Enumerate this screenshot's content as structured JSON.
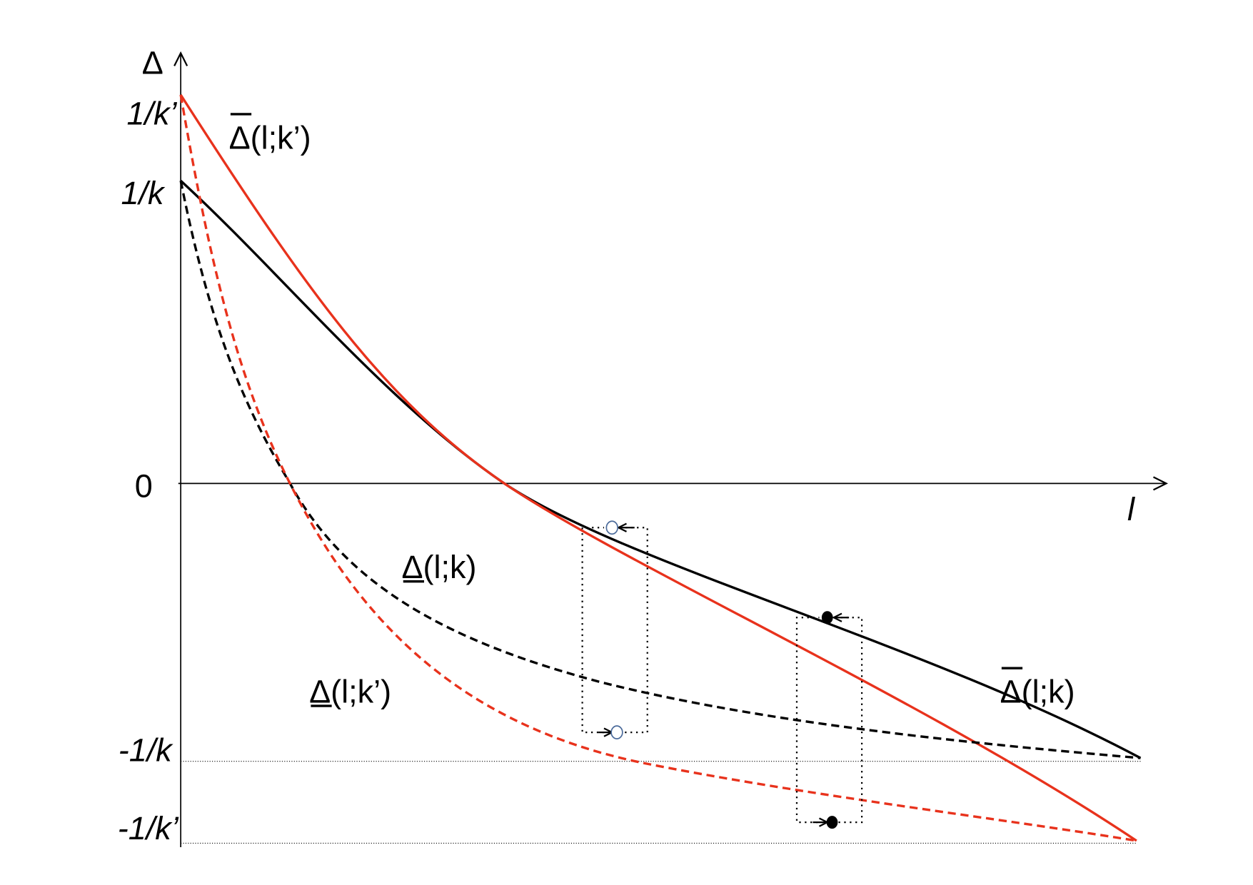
{
  "axes": {
    "y_label": "Δ",
    "x_label": "l",
    "ticks": [
      "1/k’",
      "1/k",
      "0",
      "-1/k",
      "-1/k’"
    ]
  },
  "curves": {
    "upper_k_prime": "Δ(l;k’)",
    "lower_k": "Δ(l;k)",
    "lower_k_prime": "Δ(l;k’)",
    "upper_k": "Δ(l;k)"
  }
}
